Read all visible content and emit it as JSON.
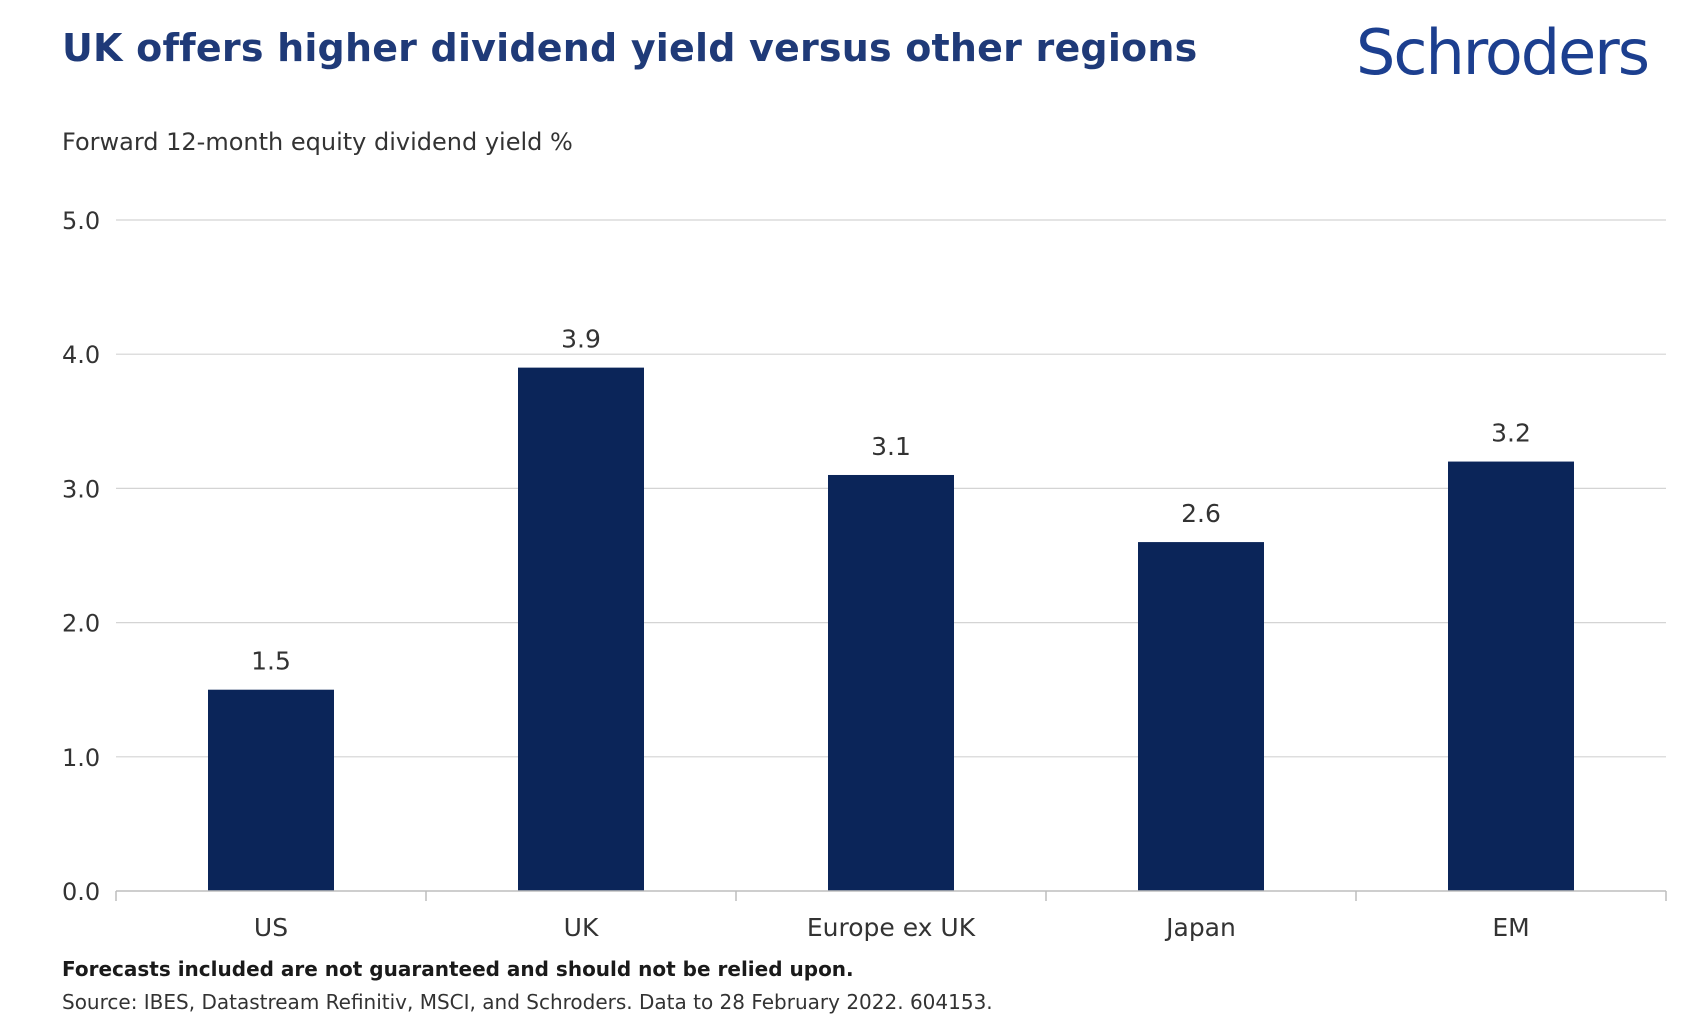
{
  "title": "UK offers higher dividend yield versus other regions",
  "brand": {
    "name": "Schroders",
    "color": "#1c3f8f"
  },
  "footnote": "Forecasts included are not guaranteed and should not be relied upon.",
  "source": "Source: IBES, Datastream Refinitiv, MSCI, and Schroders. Data to 28 February 2022. 604153.",
  "chart_data": {
    "type": "bar",
    "title": "UK offers higher dividend yield versus other regions",
    "ylabel": "Forward 12-month equity dividend yield %",
    "xlabel": "",
    "categories": [
      "US",
      "UK",
      "Europe ex UK",
      "Japan",
      "EM"
    ],
    "values": [
      1.5,
      3.9,
      3.1,
      2.6,
      3.2
    ],
    "value_labels": [
      "1.5",
      "3.9",
      "3.1",
      "2.6",
      "3.2"
    ],
    "ylim": [
      0,
      5
    ],
    "yticks": [
      "0.0",
      "1.0",
      "2.0",
      "3.0",
      "4.0",
      "5.0"
    ],
    "grid": true,
    "bar_color": "#0b2559"
  }
}
